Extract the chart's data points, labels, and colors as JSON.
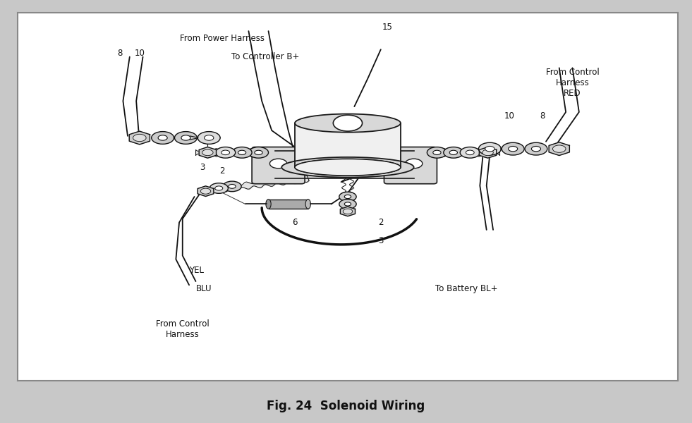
{
  "title": "Fig. 24  Solenoid Wiring",
  "title_fontsize": 12,
  "title_fontweight": "bold",
  "diagram_bg": "#ffffff",
  "outer_bg": "#c8c8c8",
  "border_color": "#999999",
  "line_color": "#1a1a1a",
  "fill_light": "#f0f0f0",
  "fill_medium": "#d8d8d8",
  "fill_dark": "#aaaaaa",
  "labels": {
    "from_power_harness": "From Power Harness",
    "to_controller": "To Controller B+",
    "from_control_harness_red": "From Control\nHarness\nRED",
    "from_control_harness": "From Control\nHarness",
    "to_battery": "To Battery BL+",
    "yel": "YEL",
    "blu": "BLU",
    "num_15": "15",
    "num_8_left": "8",
    "num_10_left": "10",
    "num_3_left": "3",
    "num_2_left": "2",
    "num_6": "6",
    "num_2_bottom": "2",
    "num_3_bottom": "3",
    "num_10_right": "10",
    "num_8_right": "8"
  }
}
